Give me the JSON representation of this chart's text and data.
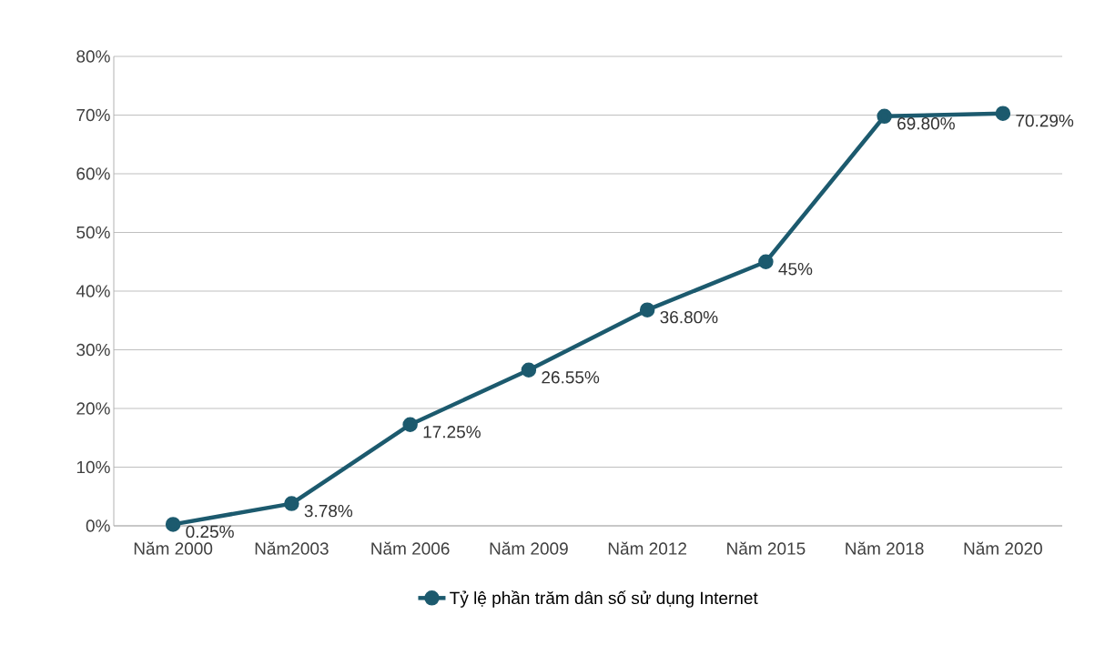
{
  "chart_data": {
    "type": "line",
    "categories": [
      "Năm 2000",
      "Năm2003",
      "Năm 2006",
      "Năm 2009",
      "Năm 2012",
      "Năm 2015",
      "Năm 2018",
      "Năm 2020"
    ],
    "series": [
      {
        "name": "Tỷ lệ phần trăm dân số sử dụng Internet",
        "color": "#1c5a6e",
        "values": [
          0.25,
          3.78,
          17.25,
          26.55,
          36.8,
          45,
          69.8,
          70.29
        ],
        "value_labels": [
          "0.25%",
          "3.78%",
          "17.25%",
          "26.55%",
          "36.80%",
          "45%",
          "69.80%",
          "70.29%"
        ]
      }
    ],
    "ylim": [
      0,
      80
    ],
    "yticks": [
      {
        "value": 0,
        "label": "0%"
      },
      {
        "value": 10,
        "label": "10%"
      },
      {
        "value": 20,
        "label": "20%"
      },
      {
        "value": 30,
        "label": "30%"
      },
      {
        "value": 40,
        "label": "40%"
      },
      {
        "value": 50,
        "label": "50%"
      },
      {
        "value": 60,
        "label": "60%"
      },
      {
        "value": 70,
        "label": "70%"
      },
      {
        "value": 80,
        "label": "80%"
      }
    ],
    "grid": "y",
    "legend": "bottom",
    "marker": "circle",
    "line_style": "solid"
  }
}
